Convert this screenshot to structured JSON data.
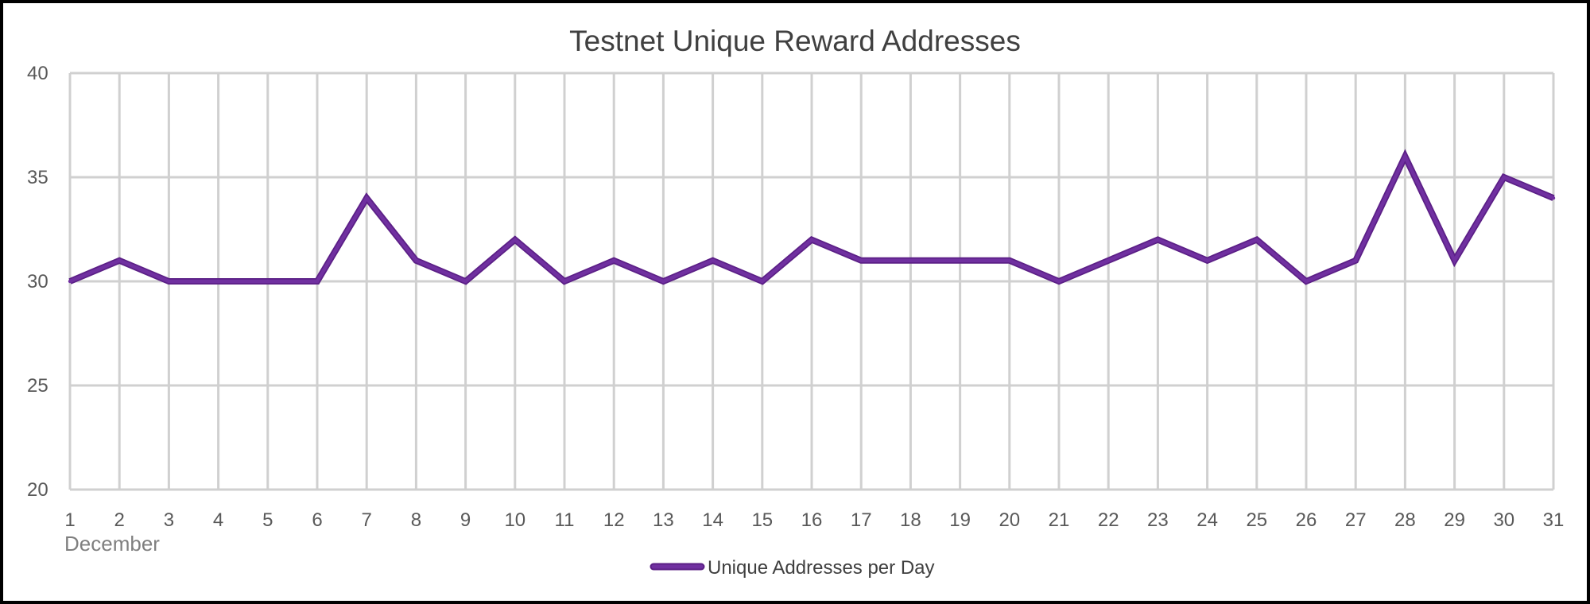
{
  "chart_data": {
    "type": "line",
    "title": "Testnet Unique Reward Addresses",
    "x": [
      1,
      2,
      3,
      4,
      5,
      6,
      7,
      8,
      9,
      10,
      11,
      12,
      13,
      14,
      15,
      16,
      17,
      18,
      19,
      20,
      21,
      22,
      23,
      24,
      25,
      26,
      27,
      28,
      29,
      30,
      31
    ],
    "x_tick_labels": [
      "1",
      "2",
      "3",
      "4",
      "5",
      "6",
      "7",
      "8",
      "9",
      "10",
      "11",
      "12",
      "13",
      "14",
      "15",
      "16",
      "17",
      "18",
      "19",
      "20",
      "21",
      "22",
      "23",
      "24",
      "25",
      "26",
      "27",
      "28",
      "29",
      "30",
      "31"
    ],
    "x_group_label": "December",
    "xlabel": "",
    "ylabel": "",
    "ylim": [
      20,
      40
    ],
    "y_ticks": [
      20,
      25,
      30,
      35,
      40
    ],
    "grid": true,
    "legend_position": "bottom",
    "series": [
      {
        "name": "Unique Addresses per Day",
        "color": "#7030a0",
        "values": [
          30,
          31,
          30,
          30,
          30,
          30,
          34,
          31,
          30,
          32,
          30,
          31,
          30,
          31,
          30,
          32,
          31,
          31,
          31,
          31,
          30,
          31,
          32,
          31,
          32,
          30,
          31,
          36,
          31,
          35,
          34
        ]
      }
    ]
  }
}
